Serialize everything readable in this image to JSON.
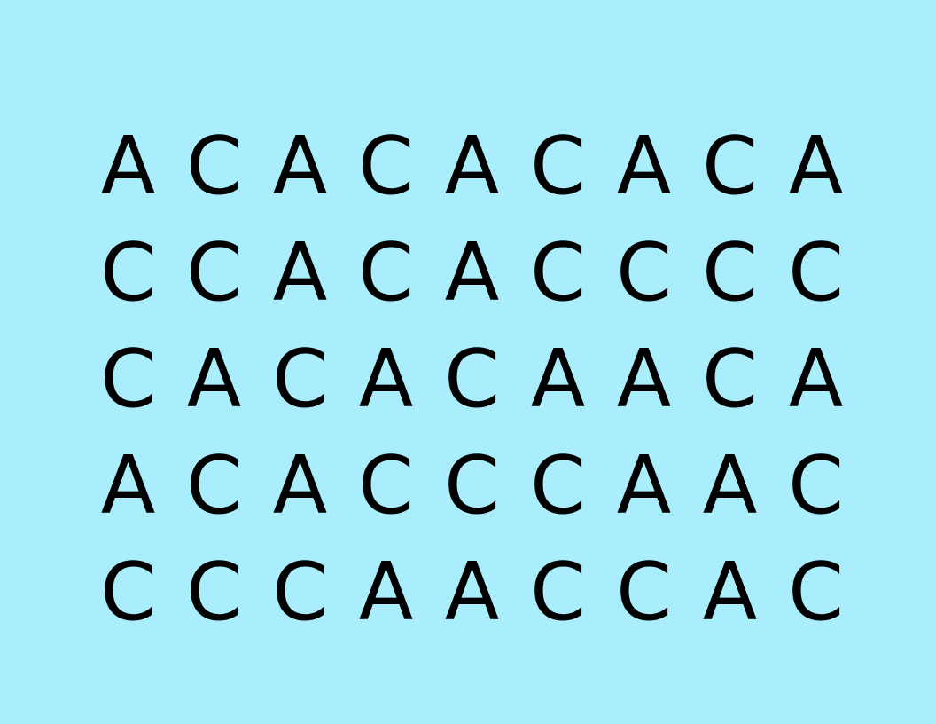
{
  "colors": {
    "background": "#aaeefe",
    "text": "#000000"
  },
  "grid": {
    "rows": [
      [
        "A",
        "C",
        "A",
        "C",
        "A",
        "C",
        "A",
        "C",
        "A"
      ],
      [
        "C",
        "C",
        "A",
        "C",
        "A",
        "C",
        "C",
        "C",
        "C"
      ],
      [
        "C",
        "A",
        "C",
        "A",
        "C",
        "A",
        "A",
        "C",
        "A"
      ],
      [
        "A",
        "C",
        "A",
        "C",
        "C",
        "C",
        "A",
        "A",
        "C"
      ],
      [
        "C",
        "C",
        "C",
        "A",
        "A",
        "C",
        "C",
        "A",
        "C"
      ]
    ]
  }
}
